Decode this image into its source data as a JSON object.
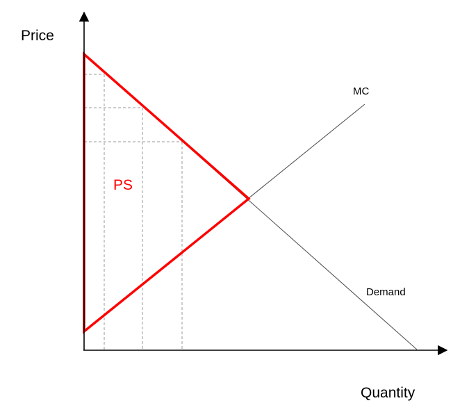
{
  "labels": {
    "y_axis": "Price",
    "x_axis": "Quantity",
    "supply_curve": "MC",
    "demand_curve": "Demand",
    "shaded_area": "PS"
  },
  "colors": {
    "area_outline": "#ff0000",
    "area_label": "#ff0000",
    "curves": "#555555",
    "guides": "#999999",
    "axes": "#000000"
  }
}
